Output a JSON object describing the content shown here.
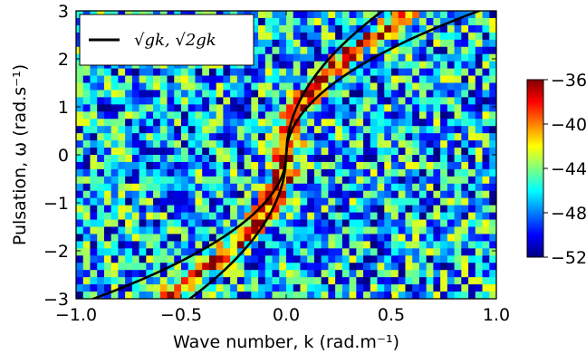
{
  "chart_data": {
    "type": "heatmap",
    "xlabel": "Wave number, k (rad.m⁻¹)",
    "ylabel": "Pulsation, ω (rad.s⁻¹)",
    "xlim": [
      -1.0,
      1.0
    ],
    "ylim": [
      -3,
      3
    ],
    "x_ticks": [
      "−1.0",
      "−0.5",
      "0.0",
      "0.5",
      "1.0"
    ],
    "y_ticks": [
      "3",
      "2",
      "1",
      "0",
      "−1",
      "−2",
      "−3"
    ],
    "colorbar": {
      "min": -52,
      "max": -36,
      "ticks": [
        "−36",
        "−40",
        "−44",
        "−48",
        "−52"
      ],
      "colormap": "jet"
    },
    "grid_size": {
      "nx": 60,
      "ny": 40
    },
    "background_level": -47,
    "ridge_level": -38,
    "legend": {
      "placement": "top-left",
      "label": "√gk, √2gk"
    },
    "series": [
      {
        "name": "√gk",
        "type": "line",
        "formula": "omega = sign(k)*sqrt(g*|k|)",
        "g": 9.81,
        "color": "#000000"
      },
      {
        "name": "√2gk",
        "type": "line",
        "formula": "omega = sign(k)*sqrt(2*g*|k|)",
        "g": 9.81,
        "color": "#000000"
      }
    ]
  }
}
